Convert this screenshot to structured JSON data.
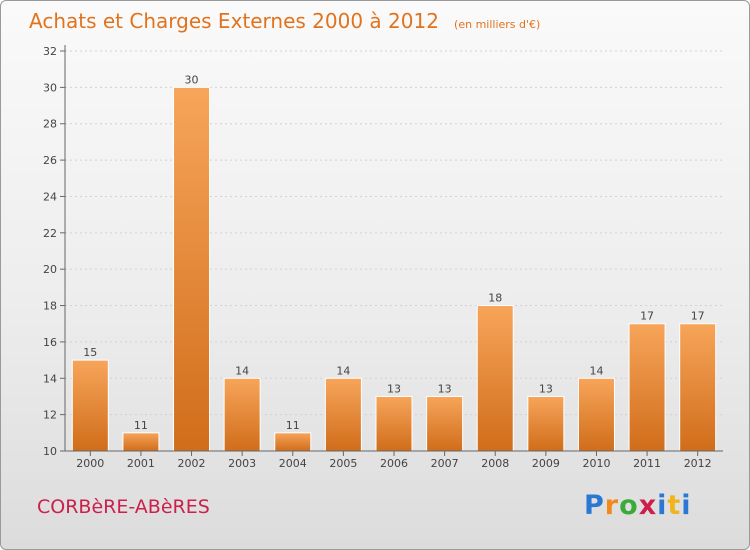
{
  "header": {
    "title": "Achats et Charges Externes 2000 à 2012",
    "unit": "(en milliers d'€)"
  },
  "footer": {
    "commune": "CORBèRE-ABèRES",
    "logo": "Proxiti"
  },
  "colors": {
    "accent": "#e2731e",
    "bar_top": "#f7a55a",
    "bar_bottom": "#d06d1a",
    "commune": "#cc1f4a"
  },
  "chart_data": {
    "type": "bar",
    "title": "Achats et Charges Externes 2000 à 2012",
    "subtitle": "(en milliers d'€)",
    "xlabel": "",
    "ylabel": "",
    "categories": [
      "2000",
      "2001",
      "2002",
      "2003",
      "2004",
      "2005",
      "2006",
      "2007",
      "2008",
      "2009",
      "2010",
      "2011",
      "2012"
    ],
    "values": [
      15,
      11,
      30,
      14,
      11,
      14,
      13,
      13,
      18,
      13,
      14,
      17,
      17
    ],
    "ylim": [
      10,
      32
    ],
    "yticks": [
      10,
      12,
      14,
      16,
      18,
      20,
      22,
      24,
      26,
      28,
      30,
      32
    ],
    "grid": true
  }
}
